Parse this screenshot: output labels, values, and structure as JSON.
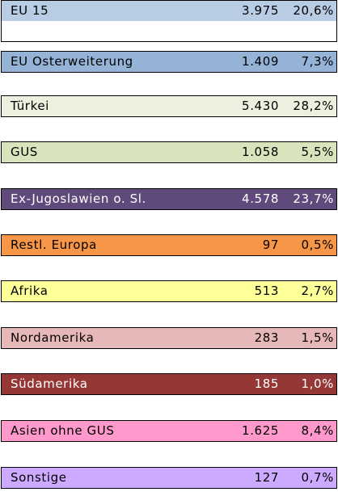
{
  "table": {
    "rows": [
      {
        "label": "EU 15",
        "value": "3.975",
        "percent": "20,6%",
        "color": "#b8cce4",
        "text_color": "#000000"
      },
      {
        "label": "EU Osterweiterung",
        "value": "1.409",
        "percent": "7,3%",
        "color": "#95b3d7",
        "text_color": "#000000"
      },
      {
        "label": "Türkei",
        "value": "5.430",
        "percent": "28,2%",
        "color": "#ebf1de",
        "text_color": "#000000"
      },
      {
        "label": "GUS",
        "value": "1.058",
        "percent": "5,5%",
        "color": "#d7e4bc",
        "text_color": "#000000"
      },
      {
        "label": "Ex-Jugoslawien o. Sl.",
        "value": "4.578",
        "percent": "23,7%",
        "color": "#604a7b",
        "text_color": "#ffffff"
      },
      {
        "label": "Restl. Europa",
        "value": "97",
        "percent": "0,5%",
        "color": "#f79646",
        "text_color": "#000000"
      },
      {
        "label": "Afrika",
        "value": "513",
        "percent": "2,7%",
        "color": "#ffff99",
        "text_color": "#000000"
      },
      {
        "label": "Nordamerika",
        "value": "283",
        "percent": "1,5%",
        "color": "#e6b9b8",
        "text_color": "#000000"
      },
      {
        "label": "Südamerika",
        "value": "185",
        "percent": "1,0%",
        "color": "#953735",
        "text_color": "#ffffff"
      },
      {
        "label": "Asien ohne GUS",
        "value": "1.625",
        "percent": "8,4%",
        "color": "#ff99cc",
        "text_color": "#000000"
      },
      {
        "label": "Sonstige",
        "value": "127",
        "percent": "0,7%",
        "color": "#ccaaff",
        "text_color": "#000000"
      }
    ]
  }
}
